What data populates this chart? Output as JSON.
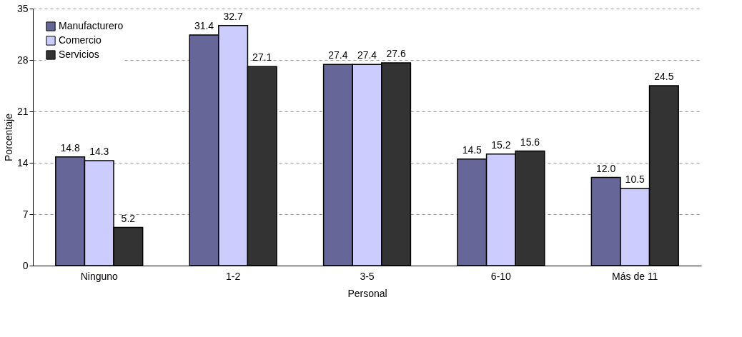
{
  "chart_data": {
    "type": "bar",
    "xlabel": "Personal",
    "ylabel": "Porcentaje",
    "categories": [
      "Ninguno",
      "1-2",
      "3-5",
      "6-10",
      "Más de 11"
    ],
    "series": [
      {
        "name": "Manufacturero",
        "color": "#666699",
        "values": [
          14.8,
          31.4,
          27.4,
          14.5,
          12.0
        ],
        "value_labels": [
          "14.8",
          "31.4",
          "27.4",
          "14.5",
          "12.0"
        ]
      },
      {
        "name": "Comercio",
        "color": "#ccccff",
        "values": [
          14.3,
          32.7,
          27.4,
          15.2,
          10.5
        ],
        "value_labels": [
          "14.3",
          "32.7",
          "27.4",
          "15.2",
          "10.5"
        ]
      },
      {
        "name": "Servicios",
        "color": "#333333",
        "values": [
          5.2,
          27.1,
          27.6,
          15.6,
          24.5
        ],
        "value_labels": [
          "5.2",
          "27.1",
          "27.6",
          "15.6",
          "24.5"
        ]
      }
    ],
    "ylim": [
      0,
      35
    ],
    "yticks": [
      0,
      7,
      14,
      21,
      28,
      35
    ],
    "grid": "y",
    "legend": "top left"
  }
}
